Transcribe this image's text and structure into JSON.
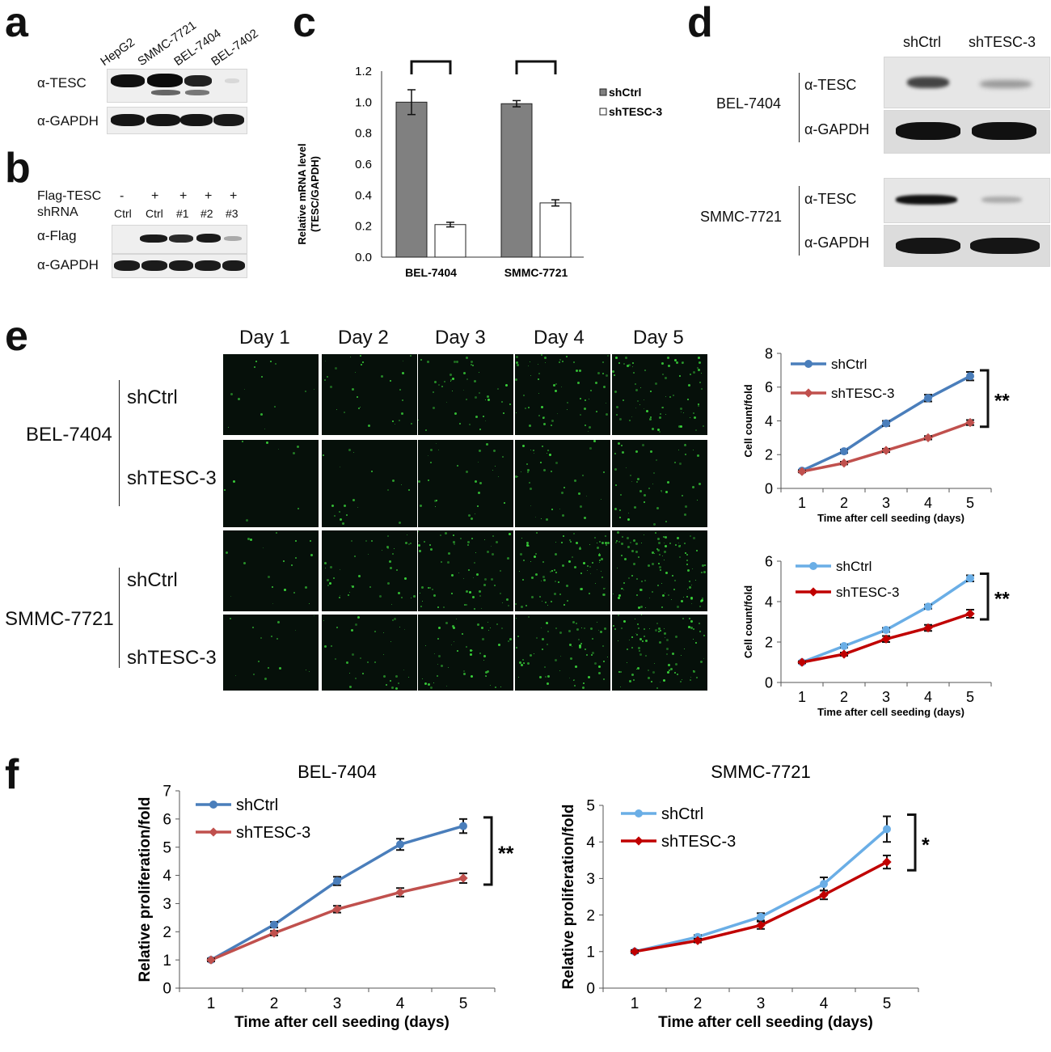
{
  "panels": {
    "a": {
      "label": "a",
      "lanes": [
        "HepG2",
        "SMMC-7721",
        "BEL-7404",
        "BEL-7402"
      ],
      "rows": [
        "α-TESC",
        "α-GAPDH"
      ]
    },
    "b": {
      "label": "b",
      "flag_label": "Flag-TESC",
      "flag_values": [
        "-",
        "+",
        "+",
        "+",
        "+"
      ],
      "shrna_label": "shRNA",
      "shrna_values": [
        "Ctrl",
        "Ctrl",
        "#1",
        "#2",
        "#3"
      ],
      "rows": [
        "α-Flag",
        "α-GAPDH"
      ]
    },
    "d": {
      "label": "d",
      "columns": [
        "shCtrl",
        "shTESC-3"
      ],
      "groups": [
        {
          "cell_line": "BEL-7404",
          "rows": [
            "α-TESC",
            "α-GAPDH"
          ]
        },
        {
          "cell_line": "SMMC-7721",
          "rows": [
            "α-TESC",
            "α-GAPDH"
          ]
        }
      ]
    },
    "e": {
      "label": "e",
      "days": [
        "Day 1",
        "Day 2",
        "Day 3",
        "Day 4",
        "Day 5"
      ],
      "groups": [
        {
          "cell_line": "BEL-7404",
          "rows": [
            "shCtrl",
            "shTESC-3"
          ]
        },
        {
          "cell_line": "SMMC-7721",
          "rows": [
            "shCtrl",
            "shTESC-3"
          ]
        }
      ]
    },
    "f": {
      "label": "f"
    },
    "c": {
      "label": "c"
    }
  },
  "colors": {
    "dark_gray_bar": "#808080",
    "blue": "#4a7ebb",
    "light_red": "#c0504d",
    "light_blue": "#6aaee6",
    "dark_red": "#c00000",
    "green_cells": "#3ee23e"
  },
  "chart_data": [
    {
      "id": "c",
      "type": "bar",
      "categories": [
        "BEL-7404",
        "SMMC-7721"
      ],
      "series": [
        {
          "name": "shCtrl",
          "values": [
            1.0,
            0.99
          ],
          "errors": [
            0.08,
            0.02
          ]
        },
        {
          "name": "shTESC-3",
          "values": [
            0.21,
            0.35
          ],
          "errors": [
            0.015,
            0.02
          ]
        }
      ],
      "ylabel": "Relative mRNA level\n(TESC/GAPDH)",
      "ylim": [
        0.0,
        1.2
      ],
      "yticks": [
        "0.0",
        "0.2",
        "0.4",
        "0.6",
        "0.8",
        "1.0",
        "1.2"
      ],
      "significance": [
        "**",
        "**"
      ],
      "legend": "right"
    },
    {
      "id": "e1",
      "type": "line",
      "x": [
        1,
        2,
        3,
        4,
        5
      ],
      "series": [
        {
          "name": "shCtrl",
          "values": [
            1.05,
            2.2,
            3.85,
            5.35,
            6.65
          ],
          "errors": [
            0.05,
            0.1,
            0.15,
            0.2,
            0.25
          ]
        },
        {
          "name": "shTESC-3",
          "values": [
            1.0,
            1.5,
            2.25,
            3.0,
            3.9
          ],
          "errors": [
            0.05,
            0.08,
            0.1,
            0.1,
            0.15
          ]
        }
      ],
      "xlabel": "Time after cell seeding (days)",
      "ylabel": "Cell count/fold",
      "ylim": [
        0,
        8
      ],
      "yticks": [
        0,
        2,
        4,
        6,
        8
      ],
      "significance": "**",
      "legend": "top-left"
    },
    {
      "id": "e2",
      "type": "line",
      "x": [
        1,
        2,
        3,
        4,
        5
      ],
      "series": [
        {
          "name": "shCtrl",
          "values": [
            1.0,
            1.8,
            2.6,
            3.75,
            5.15
          ],
          "errors": [
            0.05,
            0.08,
            0.1,
            0.1,
            0.15
          ]
        },
        {
          "name": "shTESC-3",
          "values": [
            1.0,
            1.4,
            2.15,
            2.7,
            3.4
          ],
          "errors": [
            0.05,
            0.08,
            0.15,
            0.15,
            0.2
          ]
        }
      ],
      "xlabel": "Time after cell seeding (days)",
      "ylabel": "Cell count/fold",
      "ylim": [
        0,
        6
      ],
      "yticks": [
        0,
        2,
        4,
        6
      ],
      "significance": "**",
      "legend": "top-left"
    },
    {
      "id": "f1",
      "type": "line",
      "title": "BEL-7404",
      "x": [
        1,
        2,
        3,
        4,
        5
      ],
      "series": [
        {
          "name": "shCtrl",
          "values": [
            1.0,
            2.25,
            3.8,
            5.1,
            5.75
          ],
          "errors": [
            0.05,
            0.1,
            0.15,
            0.2,
            0.25
          ]
        },
        {
          "name": "shTESC-3",
          "values": [
            1.0,
            1.95,
            2.8,
            3.4,
            3.9
          ],
          "errors": [
            0.05,
            0.08,
            0.12,
            0.15,
            0.17
          ]
        }
      ],
      "xlabel": "Time after cell seeding (days)",
      "ylabel": "Relative proliferation/fold",
      "ylim": [
        0,
        7
      ],
      "yticks": [
        0,
        1,
        2,
        3,
        4,
        5,
        6,
        7
      ],
      "significance": "**",
      "legend": "top-left"
    },
    {
      "id": "f2",
      "type": "line",
      "title": "SMMC-7721",
      "x": [
        1,
        2,
        3,
        4,
        5
      ],
      "series": [
        {
          "name": "shCtrl",
          "values": [
            1.0,
            1.4,
            1.95,
            2.85,
            4.35
          ],
          "errors": [
            0.04,
            0.05,
            0.1,
            0.18,
            0.35
          ]
        },
        {
          "name": "shTESC-3",
          "values": [
            1.0,
            1.3,
            1.72,
            2.55,
            3.45
          ],
          "errors": [
            0.04,
            0.05,
            0.1,
            0.12,
            0.18
          ]
        }
      ],
      "xlabel": "Time after cell seeding (days)",
      "ylabel": "Relative proliferation/fold",
      "ylim": [
        0,
        5
      ],
      "yticks": [
        0,
        1,
        2,
        3,
        4,
        5
      ],
      "significance": "*",
      "legend": "top-left"
    }
  ]
}
